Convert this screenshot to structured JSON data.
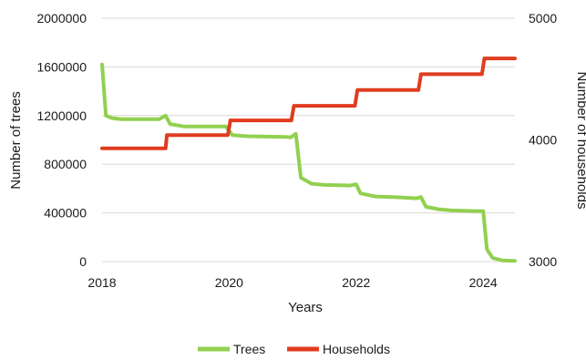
{
  "chart_data": {
    "type": "line",
    "xlabel": "Years",
    "ylabel_left": "Number of trees",
    "ylabel_right": "Number of households",
    "x_ticks": [
      "2018",
      "2020",
      "2022",
      "2024"
    ],
    "y_left_ticks": [
      "0",
      "400000",
      "800000",
      "1200000",
      "1600000",
      "2000000"
    ],
    "y_right_ticks": [
      "3000",
      "4000",
      "5000"
    ],
    "xlim": [
      2018,
      2024.5
    ],
    "ylim_left": [
      0,
      2000000
    ],
    "ylim_right": [
      3000,
      5000
    ],
    "grid": "horizontal",
    "legend_position": "bottom",
    "series": [
      {
        "name": "Trees",
        "axis": "left",
        "color": "#92d050",
        "points": [
          [
            2018.0,
            1620000
          ],
          [
            2018.06,
            1200000
          ],
          [
            2018.15,
            1180000
          ],
          [
            2018.3,
            1170000
          ],
          [
            2018.9,
            1170000
          ],
          [
            2019.0,
            1200000
          ],
          [
            2019.07,
            1130000
          ],
          [
            2019.3,
            1110000
          ],
          [
            2019.95,
            1110000
          ],
          [
            2020.05,
            1040000
          ],
          [
            2020.3,
            1030000
          ],
          [
            2020.9,
            1025000
          ],
          [
            2020.97,
            1020000
          ],
          [
            2021.05,
            1050000
          ],
          [
            2021.13,
            690000
          ],
          [
            2021.3,
            640000
          ],
          [
            2021.5,
            630000
          ],
          [
            2021.9,
            625000
          ],
          [
            2022.0,
            635000
          ],
          [
            2022.07,
            560000
          ],
          [
            2022.3,
            535000
          ],
          [
            2022.6,
            530000
          ],
          [
            2022.95,
            520000
          ],
          [
            2023.02,
            530000
          ],
          [
            2023.1,
            450000
          ],
          [
            2023.3,
            430000
          ],
          [
            2023.5,
            420000
          ],
          [
            2023.9,
            415000
          ],
          [
            2024.0,
            415000
          ],
          [
            2024.06,
            100000
          ],
          [
            2024.15,
            30000
          ],
          [
            2024.3,
            10000
          ],
          [
            2024.5,
            5000
          ]
        ]
      },
      {
        "name": "Households",
        "axis": "right",
        "color": "#e03c1f",
        "points": [
          [
            2018.0,
            3930
          ],
          [
            2019.0,
            3930
          ],
          [
            2019.02,
            4040
          ],
          [
            2019.98,
            4040
          ],
          [
            2020.02,
            4160
          ],
          [
            2020.98,
            4160
          ],
          [
            2021.02,
            4280
          ],
          [
            2021.98,
            4280
          ],
          [
            2022.02,
            4410
          ],
          [
            2022.98,
            4410
          ],
          [
            2023.02,
            4540
          ],
          [
            2023.98,
            4540
          ],
          [
            2024.02,
            4670
          ],
          [
            2024.5,
            4670
          ]
        ]
      }
    ]
  }
}
